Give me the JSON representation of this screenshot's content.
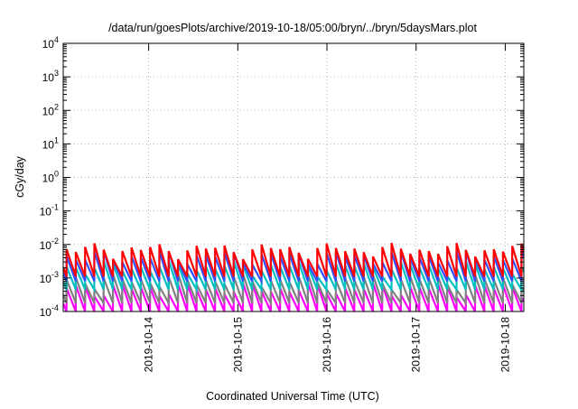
{
  "chart_data": {
    "type": "line",
    "title": "/data/run/goesPlots/archive/2019-10-18/05:00/bryn/../bryn/5daysMars.plot",
    "xlabel": "Coordinated Universal Time (UTC)",
    "ylabel": "cGy/day",
    "yscale": "log",
    "ylim": [
      0.0001,
      10000
    ],
    "xlim": [
      "2019-10-13T01:00",
      "2019-10-18T05:00"
    ],
    "x_ticks": [
      "2019-10-14",
      "2019-10-15",
      "2019-10-16",
      "2019-10-17",
      "2019-10-18"
    ],
    "y_ticks": [
      {
        "value": 0.0001,
        "base": "10",
        "exp": "-4"
      },
      {
        "value": 0.001,
        "base": "10",
        "exp": "-3"
      },
      {
        "value": 0.01,
        "base": "10",
        "exp": "-2"
      },
      {
        "value": 0.1,
        "base": "10",
        "exp": "-1"
      },
      {
        "value": 1,
        "base": "10",
        "exp": "0"
      },
      {
        "value": 10,
        "base": "10",
        "exp": "1"
      },
      {
        "value": 100,
        "base": "10",
        "exp": "2"
      },
      {
        "value": 1000,
        "base": "10",
        "exp": "3"
      },
      {
        "value": 10000,
        "base": "10",
        "exp": "4"
      }
    ],
    "grid": true,
    "legend": "none",
    "sawtooth_period_hours": 2.5,
    "series": [
      {
        "color": "#ff00ff",
        "peak": 0.0005,
        "trough": 0.0001
      },
      {
        "color": "#808080",
        "peak": 0.0009,
        "trough": 0.00018
      },
      {
        "color": "#00c0c0",
        "peak": 0.0022,
        "trough": 0.00045
      },
      {
        "color": "#3050ff",
        "peak": 0.0045,
        "trough": 0.0008
      },
      {
        "color": "#ff0000",
        "peak": 0.0072,
        "trough": 0.0011
      }
    ]
  }
}
